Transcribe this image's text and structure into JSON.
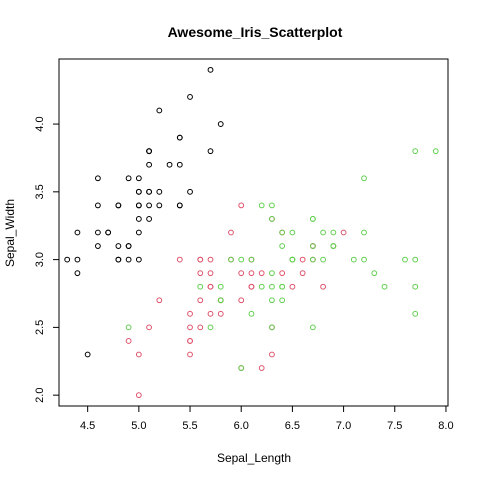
{
  "chart_data": {
    "type": "scatter",
    "title": "Awesome_Iris_Scatterplot",
    "xlabel": "Sepal_Length",
    "ylabel": "Sepal_Width",
    "xlim": [
      4.22,
      8.02
    ],
    "ylim": [
      1.92,
      4.48
    ],
    "xticks": [
      "4.5",
      "5.0",
      "5.5",
      "6.0",
      "6.5",
      "7.0",
      "7.5",
      "8.0"
    ],
    "yticks": [
      "2.0",
      "2.5",
      "3.0",
      "3.5",
      "4.0"
    ],
    "grid": false,
    "series": [
      {
        "color": "#000000",
        "points": [
          [
            5.1,
            3.5
          ],
          [
            4.9,
            3.0
          ],
          [
            4.7,
            3.2
          ],
          [
            4.6,
            3.1
          ],
          [
            5.0,
            3.6
          ],
          [
            5.4,
            3.9
          ],
          [
            4.6,
            3.4
          ],
          [
            5.0,
            3.4
          ],
          [
            4.4,
            2.9
          ],
          [
            4.9,
            3.1
          ],
          [
            5.4,
            3.7
          ],
          [
            4.8,
            3.4
          ],
          [
            4.8,
            3.0
          ],
          [
            4.3,
            3.0
          ],
          [
            5.8,
            4.0
          ],
          [
            5.7,
            4.4
          ],
          [
            5.4,
            3.9
          ],
          [
            5.1,
            3.5
          ],
          [
            5.7,
            3.8
          ],
          [
            5.1,
            3.8
          ],
          [
            5.4,
            3.4
          ],
          [
            5.1,
            3.7
          ],
          [
            4.6,
            3.6
          ],
          [
            5.1,
            3.3
          ],
          [
            4.8,
            3.4
          ],
          [
            5.0,
            3.0
          ],
          [
            5.0,
            3.4
          ],
          [
            5.2,
            3.5
          ],
          [
            5.2,
            3.4
          ],
          [
            4.7,
            3.2
          ],
          [
            4.8,
            3.1
          ],
          [
            5.4,
            3.4
          ],
          [
            5.2,
            4.1
          ],
          [
            5.5,
            4.2
          ],
          [
            4.9,
            3.1
          ],
          [
            5.0,
            3.2
          ],
          [
            5.5,
            3.5
          ],
          [
            4.9,
            3.6
          ],
          [
            4.4,
            3.0
          ],
          [
            5.1,
            3.4
          ],
          [
            5.0,
            3.5
          ],
          [
            4.5,
            2.3
          ],
          [
            4.4,
            3.2
          ],
          [
            5.0,
            3.5
          ],
          [
            5.1,
            3.8
          ],
          [
            4.8,
            3.0
          ],
          [
            5.1,
            3.8
          ],
          [
            4.6,
            3.2
          ],
          [
            5.3,
            3.7
          ],
          [
            5.0,
            3.3
          ]
        ]
      },
      {
        "color": "#DF536B",
        "points": [
          [
            7.0,
            3.2
          ],
          [
            6.4,
            3.2
          ],
          [
            6.9,
            3.1
          ],
          [
            5.5,
            2.3
          ],
          [
            6.5,
            2.8
          ],
          [
            5.7,
            2.8
          ],
          [
            6.3,
            3.3
          ],
          [
            4.9,
            2.4
          ],
          [
            6.6,
            2.9
          ],
          [
            5.2,
            2.7
          ],
          [
            5.0,
            2.0
          ],
          [
            5.9,
            3.0
          ],
          [
            6.0,
            2.2
          ],
          [
            6.1,
            2.9
          ],
          [
            5.6,
            2.9
          ],
          [
            6.7,
            3.1
          ],
          [
            5.6,
            3.0
          ],
          [
            5.8,
            2.7
          ],
          [
            6.2,
            2.2
          ],
          [
            5.6,
            2.5
          ],
          [
            5.9,
            3.2
          ],
          [
            6.1,
            2.8
          ],
          [
            6.3,
            2.5
          ],
          [
            6.1,
            2.8
          ],
          [
            6.4,
            2.9
          ],
          [
            6.6,
            3.0
          ],
          [
            6.8,
            2.8
          ],
          [
            6.7,
            3.0
          ],
          [
            6.0,
            2.9
          ],
          [
            5.7,
            2.6
          ],
          [
            5.5,
            2.4
          ],
          [
            5.5,
            2.4
          ],
          [
            5.8,
            2.7
          ],
          [
            6.0,
            2.7
          ],
          [
            5.4,
            3.0
          ],
          [
            6.0,
            3.4
          ],
          [
            6.7,
            3.1
          ],
          [
            6.3,
            2.3
          ],
          [
            5.6,
            3.0
          ],
          [
            5.5,
            2.5
          ],
          [
            5.5,
            2.6
          ],
          [
            6.1,
            3.0
          ],
          [
            5.8,
            2.6
          ],
          [
            5.0,
            2.3
          ],
          [
            5.6,
            2.7
          ],
          [
            5.7,
            3.0
          ],
          [
            5.7,
            2.9
          ],
          [
            6.2,
            2.9
          ],
          [
            5.1,
            2.5
          ],
          [
            5.7,
            2.8
          ]
        ]
      },
      {
        "color": "#61D04F",
        "points": [
          [
            6.3,
            3.3
          ],
          [
            5.8,
            2.7
          ],
          [
            7.1,
            3.0
          ],
          [
            6.3,
            2.9
          ],
          [
            6.5,
            3.0
          ],
          [
            7.6,
            3.0
          ],
          [
            4.9,
            2.5
          ],
          [
            7.3,
            2.9
          ],
          [
            6.7,
            2.5
          ],
          [
            7.2,
            3.6
          ],
          [
            6.5,
            3.2
          ],
          [
            6.4,
            2.7
          ],
          [
            6.8,
            3.0
          ],
          [
            5.7,
            2.5
          ],
          [
            5.8,
            2.8
          ],
          [
            6.4,
            3.2
          ],
          [
            6.5,
            3.0
          ],
          [
            7.7,
            3.8
          ],
          [
            7.7,
            2.6
          ],
          [
            6.0,
            2.2
          ],
          [
            6.9,
            3.2
          ],
          [
            5.6,
            2.8
          ],
          [
            7.7,
            2.8
          ],
          [
            6.3,
            2.7
          ],
          [
            6.7,
            3.3
          ],
          [
            7.2,
            3.2
          ],
          [
            6.2,
            2.8
          ],
          [
            6.1,
            3.0
          ],
          [
            6.4,
            2.8
          ],
          [
            7.2,
            3.0
          ],
          [
            7.4,
            2.8
          ],
          [
            7.9,
            3.8
          ],
          [
            6.4,
            2.8
          ],
          [
            6.3,
            2.8
          ],
          [
            6.1,
            2.6
          ],
          [
            7.7,
            3.0
          ],
          [
            6.3,
            3.4
          ],
          [
            6.4,
            3.1
          ],
          [
            6.0,
            3.0
          ],
          [
            6.9,
            3.1
          ],
          [
            6.7,
            3.1
          ],
          [
            6.9,
            3.1
          ],
          [
            5.8,
            2.7
          ],
          [
            6.8,
            3.2
          ],
          [
            6.7,
            3.3
          ],
          [
            6.7,
            3.0
          ],
          [
            6.3,
            2.5
          ],
          [
            6.5,
            3.0
          ],
          [
            6.2,
            3.4
          ],
          [
            5.9,
            3.0
          ]
        ]
      }
    ]
  }
}
